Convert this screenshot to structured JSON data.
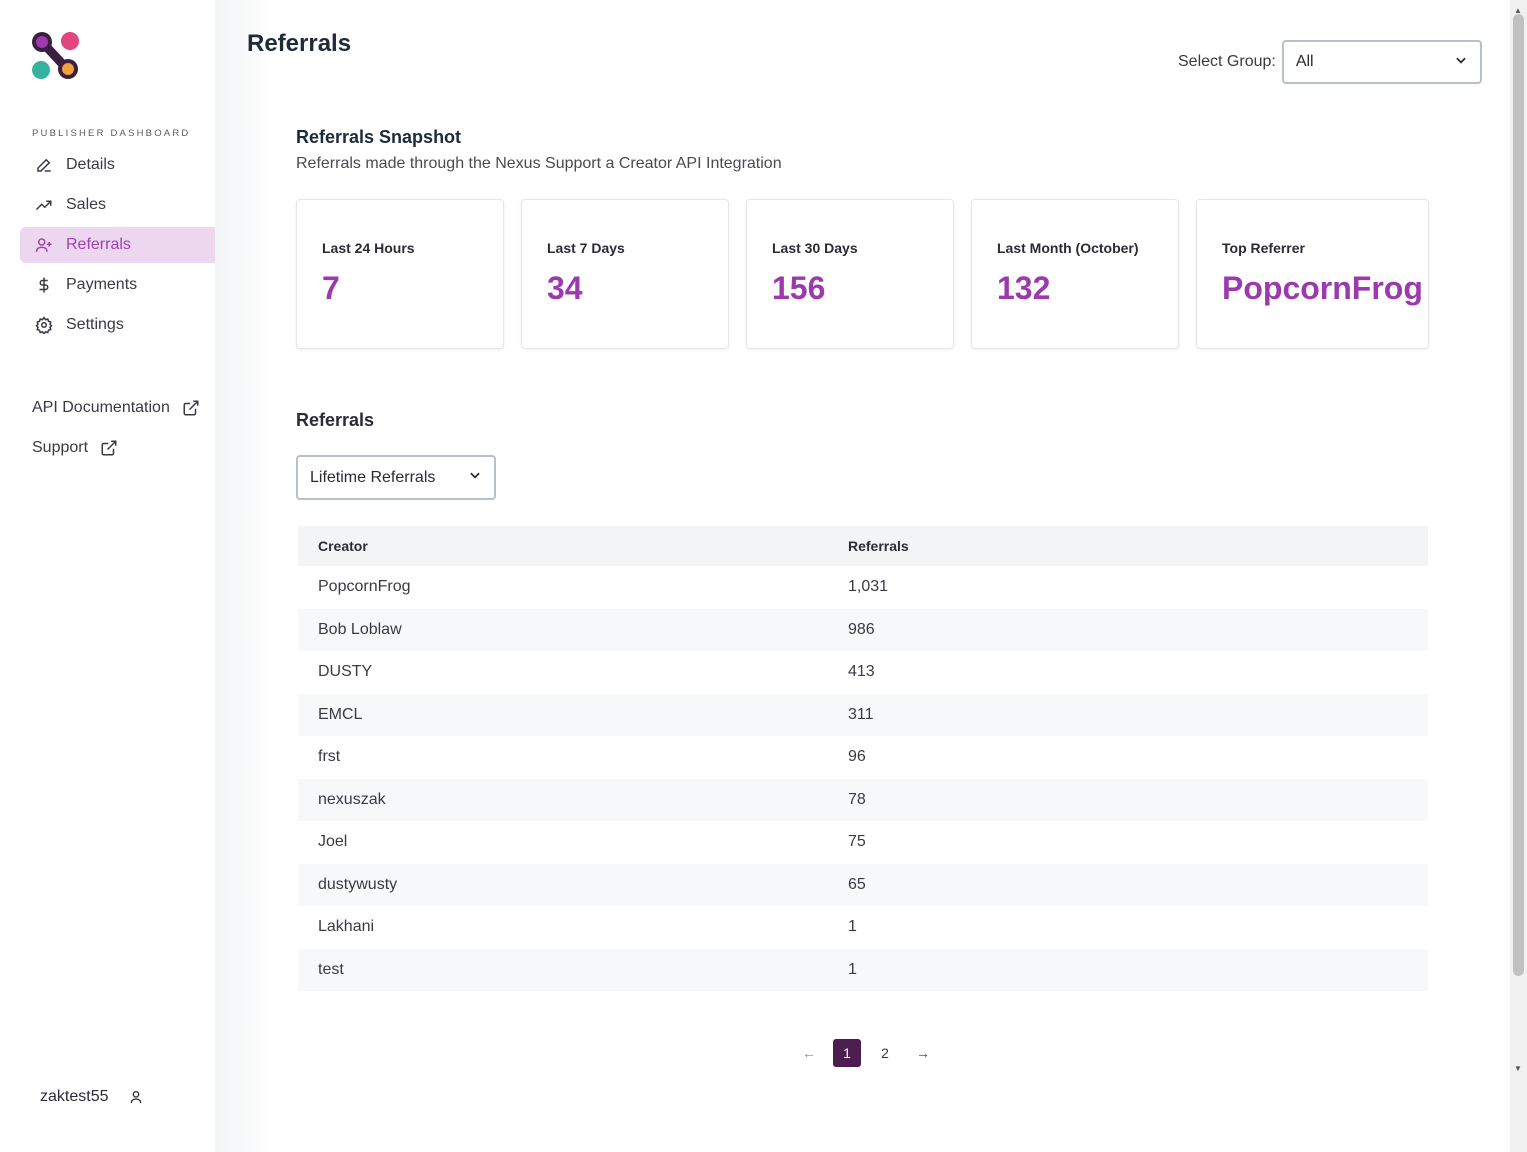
{
  "sidebar": {
    "section_label": "PUBLISHER DASHBOARD",
    "nav": [
      {
        "label": "Details",
        "icon": "pencil-icon"
      },
      {
        "label": "Sales",
        "icon": "trending-up-icon"
      },
      {
        "label": "Referrals",
        "icon": "user-plus-icon",
        "active": true
      },
      {
        "label": "Payments",
        "icon": "dollar-icon"
      },
      {
        "label": "Settings",
        "icon": "gear-icon"
      }
    ],
    "links": [
      {
        "label": "API Documentation",
        "icon": "external-link-icon"
      },
      {
        "label": "Support",
        "icon": "external-link-icon"
      }
    ],
    "username": "zaktest55"
  },
  "header": {
    "title": "Referrals",
    "group_label": "Select Group:",
    "group_value": "All"
  },
  "snapshot": {
    "title": "Referrals Snapshot",
    "subtitle": "Referrals made through the Nexus Support a Creator API Integration",
    "cards": [
      {
        "label": "Last 24 Hours",
        "value": "7"
      },
      {
        "label": "Last 7 Days",
        "value": "34"
      },
      {
        "label": "Last 30 Days",
        "value": "156"
      },
      {
        "label": "Last Month (October)",
        "value": "132"
      },
      {
        "label": "Top Referrer",
        "value": "PopcornFrog"
      }
    ]
  },
  "referrals": {
    "title": "Referrals",
    "filter_value": "Lifetime Referrals",
    "columns": [
      "Creator",
      "Referrals"
    ],
    "rows": [
      [
        "PopcornFrog",
        "1,031"
      ],
      [
        "Bob Loblaw",
        "986"
      ],
      [
        "DUSTY",
        "413"
      ],
      [
        "EMCL",
        "311"
      ],
      [
        "frst",
        "96"
      ],
      [
        "nexuszak",
        "78"
      ],
      [
        "Joel",
        "75"
      ],
      [
        "dustywusty",
        "65"
      ],
      [
        "Lakhani",
        "1"
      ],
      [
        "test",
        "1"
      ]
    ]
  },
  "pagination": {
    "prev": "←",
    "pages": [
      "1",
      "2"
    ],
    "current": "1",
    "next": "→"
  },
  "colors": {
    "accent": "#9c3aad",
    "active_nav_bg": "#ecd7ef",
    "active_page": "#4c1d4f"
  }
}
